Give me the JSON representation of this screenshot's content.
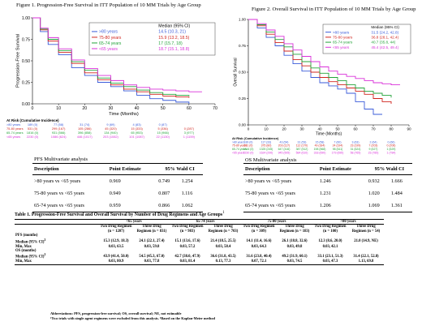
{
  "colors": {
    "g1": "#3a5bd9",
    "g2": "#d0261f",
    "g3": "#24a33a",
    "g4": "#d930d9"
  },
  "chart_data": [
    {
      "type": "line",
      "title": "Figure 1. Progression-Free Survival in ITT Population of 10 MM Trials by Age Group",
      "xlabel": "Time (Months)",
      "ylabel": "Progression-Free Survival",
      "xlim": [
        0,
        70
      ],
      "ylim": [
        0,
        1
      ],
      "xticks": [
        "0",
        "10",
        "20",
        "30",
        "40",
        "50",
        "60",
        "70"
      ],
      "yticks": [
        "0.00",
        "0.25",
        "0.50",
        "0.75",
        "1.00"
      ],
      "legend_header": "Median (95% CI)",
      "legend_placement": "top-right",
      "series": [
        {
          "name": ">80 years",
          "median": "14.5 (10.3, 21)",
          "x": [
            0,
            3,
            6,
            10,
            15,
            20,
            25,
            30,
            35,
            40,
            45,
            50,
            55,
            60
          ],
          "y": [
            1,
            0.84,
            0.69,
            0.57,
            0.42,
            0.33,
            0.25,
            0.2,
            0.15,
            0.1,
            0.06,
            0.04,
            0.02,
            0.0
          ]
        },
        {
          "name": "75-80 years",
          "median": "15.9 (13.2, 18.5)",
          "x": [
            0,
            3,
            6,
            10,
            15,
            20,
            25,
            30,
            35,
            40,
            45,
            50,
            55,
            60
          ],
          "y": [
            1,
            0.86,
            0.73,
            0.6,
            0.47,
            0.36,
            0.28,
            0.22,
            0.17,
            0.14,
            0.11,
            0.09,
            0.08,
            0.07
          ]
        },
        {
          "name": "65-74 years",
          "median": "17 (15.7, 18)",
          "x": [
            0,
            3,
            6,
            10,
            15,
            20,
            25,
            30,
            35,
            40,
            45,
            50,
            55,
            60
          ],
          "y": [
            1,
            0.87,
            0.75,
            0.62,
            0.49,
            0.39,
            0.3,
            0.24,
            0.2,
            0.16,
            0.13,
            0.11,
            0.1,
            0.09
          ]
        },
        {
          "name": "<65 years",
          "median": "18.7 (15.1, 18.8)",
          "x": [
            0,
            3,
            6,
            10,
            15,
            20,
            25,
            30,
            35,
            40,
            45,
            50,
            55,
            60,
            65
          ],
          "y": [
            1,
            0.88,
            0.77,
            0.64,
            0.51,
            0.41,
            0.33,
            0.27,
            0.22,
            0.19,
            0.17,
            0.16,
            0.15,
            0.14,
            0.14
          ]
        }
      ],
      "risk_title": "At Risk (Cumulative Incidence)",
      "risk_rows": [
        {
          "label": ">80 years",
          "values": [
            "189 (0)",
            "77 (58)",
            "31 (74)",
            "9 (69)",
            "4 (83)",
            "0 (87)"
          ]
        },
        {
          "label": "75-80 years",
          "values": [
            "531 (0)",
            "299 (167)",
            "105 (286)",
            "45 (320)",
            "15 (333)",
            "5 (336)",
            "0 (287)"
          ]
        },
        {
          "label": "65-74 years",
          "values": [
            "1816 (0)",
            "931 (566)",
            "396 (858)",
            "134 (940)",
            "65 (953)",
            "15 (966)",
            "3 (977)"
          ]
        },
        {
          "label": "<65 years",
          "values": [
            "2230 (0)",
            "1086 (624)",
            "446 (1017)",
            "203 (1082)",
            "101 (1087)",
            "22 (1130)",
            "1 (1159)"
          ]
        }
      ]
    },
    {
      "type": "line",
      "title": "Figure 2. Overall Survival in ITT Population of 10 MM Trials by Age Group",
      "xlabel": "Time (Months)",
      "ylabel": "Overall Survival",
      "xlim": [
        0,
        90
      ],
      "ylim": [
        0,
        1
      ],
      "xticks": [
        "0",
        "10",
        "20",
        "30",
        "40",
        "50",
        "60",
        "70",
        "80",
        "90"
      ],
      "yticks": [
        "0.00",
        "0.25",
        "0.50",
        "0.75",
        "1.00"
      ],
      "legend_header": "Median (95% CI)",
      "legend_placement": "top-right",
      "series": [
        {
          "name": ">80 years",
          "median": "31.5 (24.2, 42.8)",
          "x": [
            0,
            5,
            10,
            15,
            20,
            25,
            30,
            35,
            40,
            45,
            50,
            55,
            60,
            65,
            70,
            75
          ],
          "y": [
            1,
            0.92,
            0.83,
            0.75,
            0.66,
            0.58,
            0.51,
            0.45,
            0.4,
            0.37,
            0.34,
            0.3,
            0.22,
            0.15,
            0.1,
            0.1
          ]
        },
        {
          "name": "75-80 years",
          "median": "36.8 (28.1, 42.4)",
          "x": [
            0,
            5,
            10,
            15,
            20,
            25,
            30,
            35,
            40,
            45,
            50,
            55,
            60,
            65,
            70,
            75,
            80
          ],
          "y": [
            1,
            0.94,
            0.86,
            0.78,
            0.7,
            0.62,
            0.56,
            0.5,
            0.45,
            0.41,
            0.38,
            0.35,
            0.32,
            0.29,
            0.25,
            0.22,
            0.2
          ]
        },
        {
          "name": "65-74 years",
          "median": "40.7 (35.8, 44)",
          "x": [
            0,
            5,
            10,
            15,
            20,
            25,
            30,
            35,
            40,
            45,
            50,
            55,
            60,
            65,
            70,
            75,
            80
          ],
          "y": [
            1,
            0.95,
            0.88,
            0.81,
            0.74,
            0.67,
            0.6,
            0.54,
            0.49,
            0.45,
            0.42,
            0.38,
            0.35,
            0.32,
            0.3,
            0.28,
            0.26
          ]
        },
        {
          "name": "<65 years",
          "median": "45.4 (42.5, 49.4)",
          "x": [
            0,
            5,
            10,
            15,
            20,
            25,
            30,
            35,
            40,
            45,
            50,
            55,
            60,
            65,
            70,
            75,
            80,
            85
          ],
          "y": [
            1,
            0.96,
            0.9,
            0.84,
            0.77,
            0.71,
            0.65,
            0.6,
            0.55,
            0.51,
            0.48,
            0.46,
            0.44,
            0.42,
            0.4,
            0.39,
            0.38,
            0.38
          ]
        }
      ],
      "risk_title": "At Risk (Cumulative Incidence)",
      "risk_rows": [
        {
          "label": ">80 years",
          "values": [
            "189 (0)",
            "117 (33)",
            "43 (54)",
            "31 (53)",
            "15 (58)",
            "7 (60)",
            "3 (63)",
            "2 (64)",
            "0 (66)"
          ]
        },
        {
          "label": "75-80 years",
          "values": [
            "531 (0)",
            "375 (80)",
            "203 (117)",
            "112 (170)",
            "49 (184)",
            "24 (194)",
            "23 (199)",
            "7 (203)",
            "0 (206)"
          ]
        },
        {
          "label": "65-74 years",
          "values": [
            "1816 (0)",
            "1325 (245)",
            "647 (416)",
            "387 (512)",
            "198 (568)",
            "98 (611)",
            "31 (624)",
            "9 (627)",
            "1 (629)"
          ]
        },
        {
          "label": "<65 years",
          "values": [
            "2230 (0)",
            "1624 (290)",
            "945 (505)",
            "584 (610)",
            "318 (690)",
            "179 (695)",
            "58 (765)",
            "23 (785)",
            "1 (784)"
          ]
        }
      ]
    }
  ],
  "pfs_mv": {
    "title": "PFS Multivariate analysis",
    "headers": [
      "Description",
      "Point Estimate",
      "95% Wald CI",
      ""
    ],
    "rows": [
      [
        ">80 years vs <65 years",
        "0.969",
        "0.749",
        "1.254"
      ],
      [
        "75-80 years vs <65 years",
        "0.949",
        "0.807",
        "1.116"
      ],
      [
        "65-74 years vs <65 years",
        "0.959",
        "0.866",
        "1.062"
      ]
    ]
  },
  "os_mv": {
    "title": "OS Multivariate analysis",
    "headers": [
      "Description",
      "Point Estimate",
      "95% Wald CI",
      ""
    ],
    "rows": [
      [
        ">80 years vs <65 years",
        "1.246",
        "0.932",
        "1.666"
      ],
      [
        "75-80 years vs <65 years",
        "1.231",
        "1.020",
        "1.484"
      ],
      [
        "65-74 years vs <65 years",
        "1.206",
        "1.069",
        "1.361"
      ]
    ]
  },
  "table1": {
    "title": "Table 1. Progression-Free Survival and Overall Survival by Number of Drug Regimens and Age Groups",
    "title_sup": "1",
    "groups": [
      "<65 years",
      "65-74 years",
      "75-80 years",
      ">80 years"
    ],
    "subheaders": [
      "Two Drug Regimen (n = 1207)",
      "Three Drug Regimen (n = 831)",
      "Two Drug Regimen (n = 983)",
      "Three Drug Regimen (n = 703)",
      "Two Drug Regimen (n = 309)",
      "Three Drug Regimen (n = 183)",
      "Two Drug Regimen (n = 100)",
      "Three Drug Regimen (n = 54)"
    ],
    "rows": [
      {
        "label": "PFS (months)",
        "values": []
      },
      {
        "label": "Median (95% CI)",
        "label_sup": "2",
        "values": [
          "15.3 (12.9, 18.3)",
          "24.1 (22.1, 27.4)",
          "15.1 (13.6, 17.6)",
          "21.4 (18.5, 25.5)",
          "14.1 (11.4, 16.6)",
          "26.1 (18.8, 32.6)",
          "12.3 (8.6, 20.0)",
          "21.0 (14.9, NE)"
        ]
      },
      {
        "label": "Min, Max",
        "values": [
          "0.03, 63.5",
          "0.03, 59.8",
          "0.03, 57.2",
          "0.03, 58.4",
          "0.03, 64.3",
          "0.03, 49.8",
          "0.03, 42.1",
          ""
        ]
      },
      {
        "label": "OS (months)",
        "values": []
      },
      {
        "label": "Median (95% CI)",
        "label_sup": "2",
        "values": [
          "43.9 (41.4, 50.0)",
          "54.5 (45.3, 67.0)",
          "42.7 (38.0, 47.9)",
          "36.6 (31.8, 43.5)",
          "31.6 (23.8, 40.4)",
          "49.2 (31.9, 60.1)",
          "33.1 (23.1, 51.3)",
          "31.4 (22.1, 52.8)"
        ]
      },
      {
        "label": "Min, Max",
        "values": [
          "0.03, 80.9",
          "0.03, 77.8",
          "0.03, 81.4",
          "0.13, 77.3",
          "0.07, 72.1",
          "0.03, 74.5",
          "0.03, 47.3",
          "1.13, 69.8"
        ]
      }
    ],
    "footnotes": [
      "Abbreviations: PFS, progression-free survival; OS, overall survival; NE, not estimable",
      "¹Two trials with single agent regimens were excluded from this analysis.  ²Based on the Kaplan-Meier method"
    ]
  }
}
